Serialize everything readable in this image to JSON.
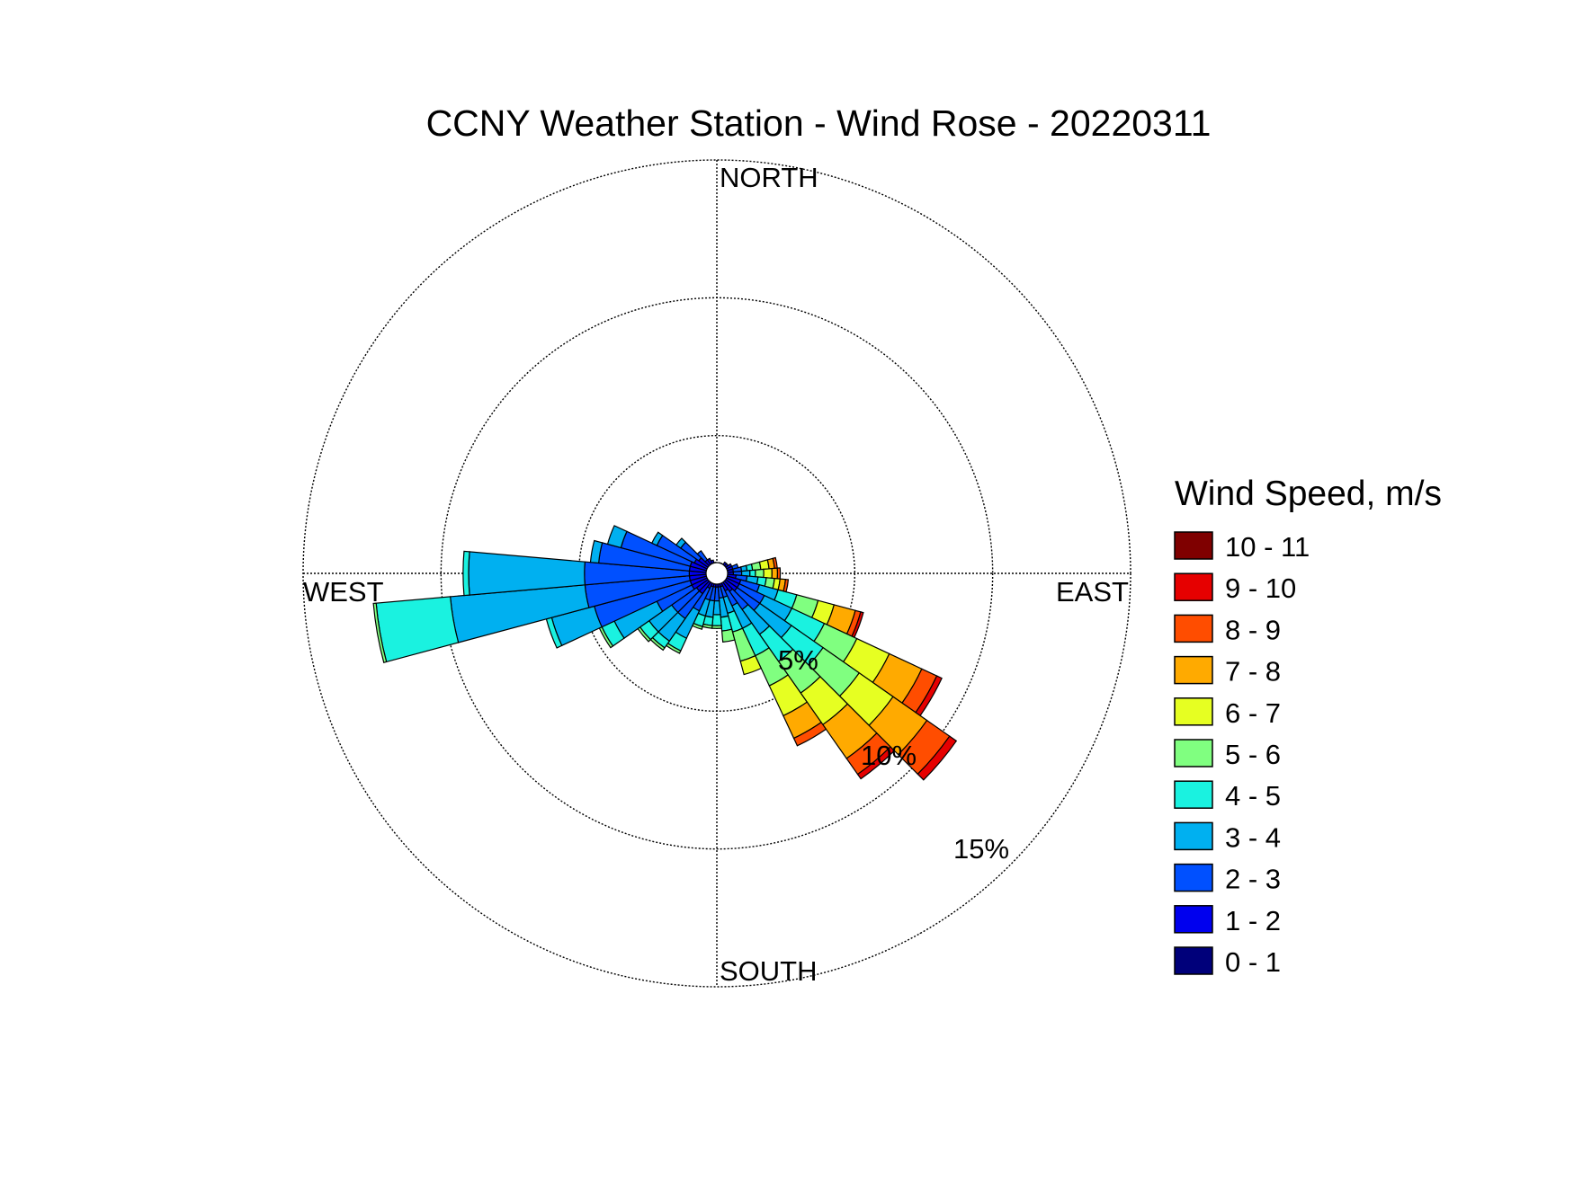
{
  "chart_data": {
    "type": "wind-rose",
    "title": "CCNY Weather Station - Wind Rose - 20220311",
    "direction_labels": {
      "north": "NORTH",
      "east": "EAST",
      "south": "SOUTH",
      "west": "WEST"
    },
    "radial_axis": {
      "max_percent": 15,
      "ticks": [
        5,
        10,
        15
      ],
      "tick_labels": [
        "5%",
        "10%",
        "15%"
      ]
    },
    "legend": {
      "title": "Wind Speed, m/s",
      "bins": [
        "10 - 11",
        "9 - 10",
        "8 - 9",
        "7 - 8",
        "6 - 7",
        "5 - 6",
        "4 - 5",
        "3 - 4",
        "2 - 3",
        "1 - 2",
        "0 - 1"
      ],
      "colors": [
        "#7f0000",
        "#e60000",
        "#ff4d00",
        "#ffaa00",
        "#e6ff22",
        "#80ff80",
        "#1af2e0",
        "#00b0f0",
        "#0050ff",
        "#0000ee",
        "#00007a"
      ]
    },
    "bin_order_inner_to_outer": [
      "0 - 1",
      "1 - 2",
      "2 - 3",
      "3 - 4",
      "4 - 5",
      "5 - 6",
      "6 - 7",
      "7 - 8",
      "8 - 9",
      "9 - 10",
      "10 - 11"
    ],
    "sector_width_deg": 10,
    "sectors": [
      {
        "dir": 0,
        "cum": [
          0.3
        ]
      },
      {
        "dir": 10,
        "cum": [
          0.3
        ]
      },
      {
        "dir": 20,
        "cum": [
          0.3,
          0.4
        ]
      },
      {
        "dir": 30,
        "cum": [
          0.3,
          0.4
        ]
      },
      {
        "dir": 40,
        "cum": [
          0.3,
          0.5
        ]
      },
      {
        "dir": 50,
        "cum": [
          0.3,
          0.5
        ]
      },
      {
        "dir": 60,
        "cum": [
          0.3,
          0.6
        ]
      },
      {
        "dir": 70,
        "cum": [
          0.3,
          0.6,
          0.8
        ]
      },
      {
        "dir": 80,
        "cum": [
          0.3,
          0.6,
          0.9,
          1.1,
          1.3,
          1.6,
          1.9,
          2.1,
          2.2
        ]
      },
      {
        "dir": 90,
        "cum": [
          0.3,
          0.6,
          0.9,
          1.2,
          1.4,
          1.7,
          2.0,
          2.2,
          2.3
        ]
      },
      {
        "dir": 100,
        "cum": [
          0.3,
          0.7,
          1.1,
          1.5,
          1.8,
          2.1,
          2.3,
          2.5,
          2.6
        ]
      },
      {
        "dir": 110,
        "cum": [
          0.3,
          0.9,
          1.6,
          2.3,
          3.0,
          3.8,
          4.4,
          5.2,
          5.4,
          5.5
        ]
      },
      {
        "dir": 120,
        "cum": [
          0.3,
          0.9,
          1.9,
          3.0,
          4.3,
          5.6,
          6.9,
          8.2,
          8.8,
          9.0
        ]
      },
      {
        "dir": 130,
        "cum": [
          0.3,
          0.9,
          1.9,
          3.3,
          4.7,
          6.3,
          7.8,
          9.3,
          10.3,
          10.6
        ]
      },
      {
        "dir": 140,
        "cum": [
          0.3,
          0.8,
          1.6,
          2.7,
          3.9,
          5.3,
          6.7,
          8.2,
          8.9,
          9.1
        ]
      },
      {
        "dir": 150,
        "cum": [
          0.3,
          0.7,
          1.3,
          2.2,
          3.3,
          4.5,
          5.7,
          6.6,
          6.9
        ]
      },
      {
        "dir": 160,
        "cum": [
          0.3,
          0.5,
          0.9,
          1.5,
          2.2,
          3.3,
          3.8
        ]
      },
      {
        "dir": 170,
        "cum": [
          0.3,
          0.5,
          0.9,
          1.6,
          2.1,
          2.5
        ]
      },
      {
        "dir": 180,
        "cum": [
          0.3,
          0.5,
          1.0,
          1.5,
          1.9,
          2.0
        ]
      },
      {
        "dir": 190,
        "cum": [
          0.3,
          0.5,
          1.0,
          1.6,
          1.9,
          2.0
        ]
      },
      {
        "dir": 200,
        "cum": [
          0.3,
          0.5,
          1.0,
          1.6,
          2.0,
          2.1
        ]
      },
      {
        "dir": 210,
        "cum": [
          0.3,
          0.6,
          1.5,
          2.6,
          3.1,
          3.2
        ]
      },
      {
        "dir": 220,
        "cum": [
          0.3,
          0.9,
          2.0,
          3.0,
          3.3,
          3.4
        ]
      },
      {
        "dir": 230,
        "cum": [
          0.3,
          0.9,
          2.0,
          3.0,
          3.4,
          3.5
        ]
      },
      {
        "dir": 240,
        "cum": [
          0.3,
          1.0,
          2.4,
          4.1,
          4.6,
          4.7
        ]
      },
      {
        "dir": 250,
        "cum": [
          0.3,
          1.0,
          4.6,
          6.2,
          6.4
        ]
      },
      {
        "dir": 260,
        "cum": [
          0.3,
          1.0,
          4.8,
          9.7,
          12.4,
          12.5
        ]
      },
      {
        "dir": 270,
        "cum": [
          0.3,
          1.0,
          4.8,
          9.0,
          9.2
        ]
      },
      {
        "dir": 280,
        "cum": [
          0.3,
          1.0,
          4.3,
          4.6
        ]
      },
      {
        "dir": 290,
        "cum": [
          0.3,
          1.0,
          3.6,
          4.1
        ]
      },
      {
        "dir": 300,
        "cum": [
          0.3,
          0.9,
          2.4,
          2.6
        ]
      },
      {
        "dir": 310,
        "cum": [
          0.3,
          0.8,
          1.6,
          1.8
        ]
      },
      {
        "dir": 320,
        "cum": [
          0.3,
          0.6,
          1.0
        ]
      },
      {
        "dir": 330,
        "cum": [
          0.3,
          0.6
        ]
      },
      {
        "dir": 340,
        "cum": [
          0.3,
          0.5
        ]
      },
      {
        "dir": 350,
        "cum": [
          0.3,
          0.4
        ]
      }
    ]
  }
}
